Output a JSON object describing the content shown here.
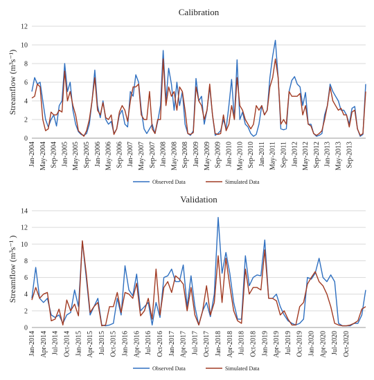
{
  "chart_data": [
    {
      "type": "line",
      "title": "Calibration",
      "ylabel": "Streamflow (m³s⁻¹)",
      "ylim": [
        0,
        12
      ],
      "yticks": [
        0,
        2,
        4,
        6,
        8,
        10,
        12
      ],
      "grid": "horizontal",
      "legend_placement": "bottom-center",
      "x_start": "2004-01",
      "x_labels": [
        "Jan-2004",
        "May-2004",
        "Sep-2004",
        "Jan-2005",
        "May-2005",
        "Sep-2005",
        "Jan-2006",
        "May-2006",
        "Sep-2006",
        "Jan-2007",
        "May-2007",
        "Sep-2007",
        "Jan-2008",
        "May-2008",
        "Sep-2008",
        "Jan-2009",
        "May-2009",
        "Sep-2009",
        "Jan-2010",
        "May-2010",
        "Sep-2010",
        "Jan-2011",
        "May-2011",
        "Sep-2011",
        "Jan-2012",
        "May-2012",
        "Sep-2012",
        "Jan-2013",
        "May-2013",
        "Sep-2013"
      ],
      "series": [
        {
          "name": "Observed Data",
          "color": "#2e6fc0",
          "values": [
            5.0,
            6.5,
            5.8,
            6.0,
            4.0,
            2.0,
            1.2,
            2.0,
            2.5,
            1.3,
            3.5,
            4.0,
            8.0,
            5.0,
            6.0,
            3.0,
            1.5,
            0.7,
            0.4,
            0.3,
            0.5,
            1.5,
            4.0,
            7.3,
            3.5,
            2.2,
            4.0,
            2.0,
            1.5,
            1.8,
            0.5,
            1.0,
            2.5,
            3.0,
            1.5,
            1.2,
            5.0,
            4.5,
            6.8,
            6.0,
            3.0,
            1.0,
            0.5,
            1.0,
            1.5,
            0.5,
            1.8,
            3.5,
            9.4,
            4.0,
            7.5,
            5.8,
            3.0,
            6.0,
            3.5,
            5.0,
            1.5,
            0.5,
            0.3,
            0.8,
            6.4,
            4.0,
            4.5,
            1.5,
            3.0,
            5.5,
            2.5,
            0.3,
            0.5,
            0.8,
            2.0,
            1.0,
            3.5,
            6.3,
            2.0,
            8.4,
            2.0,
            2.8,
            1.5,
            1.2,
            0.5,
            0.2,
            0.4,
            1.5,
            3.5,
            2.5,
            3.0,
            6.5,
            8.8,
            10.5,
            6.5,
            1.0,
            0.9,
            1.0,
            5.0,
            6.2,
            6.6,
            5.8,
            5.5,
            3.5,
            4.9,
            1.5,
            1.5,
            0.5,
            0.2,
            0.3,
            0.5,
            2.5,
            3.5,
            5.8,
            5.0,
            4.5,
            4.0,
            3.0,
            3.0,
            2.5,
            1.5,
            3.2,
            3.4,
            1.0,
            0.2,
            0.4,
            5.8
          ]
        },
        {
          "name": "Simulated Data",
          "color": "#a13a22",
          "values": [
            4.3,
            4.5,
            5.8,
            5.5,
            2.0,
            0.8,
            1.0,
            2.8,
            2.5,
            2.5,
            3.0,
            2.8,
            7.2,
            4.0,
            5.0,
            3.5,
            2.5,
            0.8,
            0.5,
            0.2,
            0.8,
            2.0,
            4.0,
            6.5,
            3.0,
            2.5,
            3.8,
            2.2,
            2.0,
            2.5,
            0.4,
            1.0,
            2.8,
            3.5,
            3.0,
            1.8,
            4.0,
            5.5,
            5.5,
            5.8,
            2.5,
            2.0,
            2.0,
            5.0,
            1.0,
            0.5,
            2.0,
            2.0,
            8.5,
            3.5,
            5.5,
            4.5,
            5.0,
            3.0,
            5.5,
            5.0,
            3.0,
            0.5,
            0.4,
            0.6,
            5.5,
            4.0,
            3.5,
            2.0,
            3.0,
            5.8,
            2.5,
            0.5,
            0.4,
            0.5,
            2.5,
            0.8,
            1.5,
            3.5,
            2.0,
            6.5,
            3.5,
            3.0,
            2.0,
            1.5,
            1.0,
            1.5,
            3.5,
            3.0,
            3.5,
            2.5,
            3.0,
            5.5,
            6.5,
            8.5,
            6.5,
            1.5,
            2.0,
            1.5,
            5.0,
            4.5,
            4.5,
            4.5,
            4.8,
            2.5,
            3.5,
            1.5,
            1.3,
            0.5,
            0.3,
            0.5,
            0.8,
            2.0,
            3.5,
            5.5,
            4.0,
            3.5,
            3.0,
            3.2,
            2.5,
            2.5,
            1.2,
            2.8,
            3.0,
            1.0,
            0.3,
            0.5,
            5.0
          ]
        }
      ]
    },
    {
      "type": "line",
      "title": "Validation",
      "ylabel": "Streamflow (m³s⁻¹ )",
      "ylim": [
        0,
        14
      ],
      "yticks": [
        0,
        2,
        4,
        6,
        8,
        10,
        12,
        14
      ],
      "grid": "horizontal",
      "legend_placement": "bottom-center",
      "x_start": "2014-01",
      "x_labels": [
        "Jan-2014",
        "Apr-2014",
        "Jul-2014",
        "Oct-2014",
        "Jan-2015",
        "Apr-2015",
        "Jul-2015",
        "Oct-2015",
        "Jan-2016",
        "Apr-2016",
        "Jul-2016",
        "Oct-2016",
        "Jan-2017",
        "Apr-2017",
        "Jul-2017",
        "Oct-2017",
        "Jan-2018",
        "Apr-2018",
        "Jul-2018",
        "Oct-2018",
        "Jan-2019",
        "Apr-2019",
        "Jul-2019",
        "Oct-2019",
        "Jan-2020",
        "Apr-2020",
        "Jul-2020",
        "Oct-2020"
      ],
      "series": [
        {
          "name": "Observed Data",
          "color": "#2e6fc0",
          "values": [
            3.5,
            7.2,
            3.5,
            3.0,
            3.5,
            1.5,
            1.2,
            1.5,
            0.5,
            1.5,
            1.8,
            4.5,
            2.5,
            10.3,
            6.0,
            1.5,
            2.5,
            3.5,
            0.3,
            0.2,
            0.3,
            0.5,
            3.5,
            1.5,
            7.4,
            4.5,
            3.8,
            6.4,
            2.0,
            2.5,
            3.0,
            0.3,
            3.0,
            1.2,
            6.0,
            6.2,
            7.0,
            5.5,
            5.5,
            7.5,
            2.5,
            6.2,
            2.5,
            0.3,
            2.0,
            3.0,
            1.3,
            4.0,
            13.2,
            6.5,
            9.0,
            6.5,
            3.0,
            1.0,
            1.0,
            8.6,
            5.0,
            6.0,
            6.3,
            6.2,
            10.5,
            3.5,
            3.5,
            4.0,
            2.5,
            1.5,
            0.8,
            0.5,
            0.3,
            0.5,
            1.0,
            6.0,
            5.8,
            6.5,
            8.3,
            6.0,
            5.5,
            6.3,
            5.5,
            0.5,
            0.2,
            0.2,
            0.2,
            0.5,
            0.5,
            1.5,
            4.5
          ]
        },
        {
          "name": "Simulated Data",
          "color": "#a13a22",
          "values": [
            3.3,
            4.8,
            3.5,
            4.0,
            4.2,
            0.8,
            1.0,
            2.2,
            0.3,
            3.3,
            2.0,
            2.8,
            1.4,
            10.4,
            6.5,
            1.8,
            2.5,
            3.0,
            0.2,
            0.3,
            2.5,
            2.5,
            4.2,
            1.8,
            4.2,
            4.0,
            3.5,
            5.3,
            1.4,
            2.0,
            3.5,
            1.0,
            7.0,
            1.5,
            4.8,
            5.5,
            4.2,
            6.2,
            5.8,
            5.2,
            2.0,
            4.8,
            1.5,
            0.3,
            2.0,
            5.0,
            1.5,
            3.0,
            8.6,
            3.0,
            8.3,
            5.0,
            2.0,
            0.8,
            0.5,
            7.0,
            4.0,
            4.8,
            4.8,
            4.5,
            9.3,
            3.5,
            3.5,
            3.2,
            1.5,
            2.0,
            1.0,
            0.3,
            0.3,
            2.5,
            3.0,
            5.2,
            6.0,
            6.7,
            5.5,
            5.0,
            4.0,
            2.5,
            0.5,
            0.3,
            0.2,
            0.2,
            0.3,
            0.5,
            0.8,
            2.2,
            2.5
          ]
        }
      ]
    }
  ]
}
